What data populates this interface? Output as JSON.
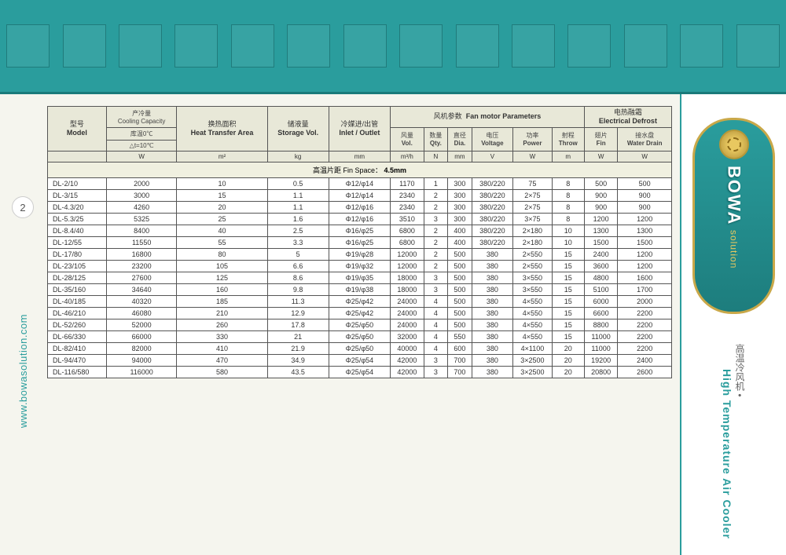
{
  "page_number": "2",
  "url": "www.bowasolution.com",
  "brand": "BOWA",
  "brand_sub": "solution",
  "product_title_en": "High Temperature Air Cooler",
  "product_title_cn": "高温冷风机",
  "headers": {
    "model_cn": "型号",
    "model_en": "Model",
    "cooling_cn": "产冷量",
    "cooling_en": "Cooling Capacity",
    "temp_cn": "库温0℃",
    "dt": "△t=10℃",
    "heat_cn": "换热面积",
    "heat_en": "Heat Transfer Area",
    "storage_cn": "储液量",
    "storage_en": "Storage Vol.",
    "inlet_cn": "冷媒进/出管",
    "inlet_en": "Inlet / Outlet",
    "fan_group_cn": "风机参数",
    "fan_group_en": "Fan motor Parameters",
    "vol_cn": "风量",
    "vol_en": "Vol.",
    "qty_cn": "数量",
    "qty_en": "Qty.",
    "dia_cn": "直径",
    "dia_en": "Dia.",
    "voltage_cn": "电压",
    "voltage_en": "Voltage",
    "power_cn": "功率",
    "power_en": "Power",
    "throw_cn": "射程",
    "throw_en": "Throw",
    "defrost_cn": "电热融霜",
    "defrost_en": "Electrical Defrost",
    "fin_cn": "翅片",
    "fin_en": "Fin",
    "drain_cn": "接水盘",
    "drain_en": "Water Drain"
  },
  "units": {
    "cooling": "W",
    "heat": "m²",
    "storage": "kg",
    "inlet": "mm",
    "vol": "m³/h",
    "qty": "N",
    "dia": "mm",
    "voltage": "V",
    "power": "W",
    "throw": "m",
    "fin": "W",
    "drain": "W"
  },
  "section_label_cn": "高温片距 Fin Space：",
  "section_value": "4.5mm",
  "rows": [
    {
      "m": "DL-2/10",
      "c": "2000",
      "h": "10",
      "s": "0.5",
      "io": "Φ12/φ14",
      "v": "1170",
      "q": "1",
      "d": "300",
      "vo": "380/220",
      "p": "75",
      "t": "8",
      "f": "500",
      "w": "500"
    },
    {
      "m": "DL-3/15",
      "c": "3000",
      "h": "15",
      "s": "1.1",
      "io": "Φ12/φ14",
      "v": "2340",
      "q": "2",
      "d": "300",
      "vo": "380/220",
      "p": "2×75",
      "t": "8",
      "f": "900",
      "w": "900"
    },
    {
      "m": "DL-4.3/20",
      "c": "4260",
      "h": "20",
      "s": "1.1",
      "io": "Φ12/φ16",
      "v": "2340",
      "q": "2",
      "d": "300",
      "vo": "380/220",
      "p": "2×75",
      "t": "8",
      "f": "900",
      "w": "900"
    },
    {
      "m": "DL-5.3/25",
      "c": "5325",
      "h": "25",
      "s": "1.6",
      "io": "Φ12/φ16",
      "v": "3510",
      "q": "3",
      "d": "300",
      "vo": "380/220",
      "p": "3×75",
      "t": "8",
      "f": "1200",
      "w": "1200"
    },
    {
      "m": "DL-8.4/40",
      "c": "8400",
      "h": "40",
      "s": "2.5",
      "io": "Φ16/φ25",
      "v": "6800",
      "q": "2",
      "d": "400",
      "vo": "380/220",
      "p": "2×180",
      "t": "10",
      "f": "1300",
      "w": "1300"
    },
    {
      "m": "DL-12/55",
      "c": "11550",
      "h": "55",
      "s": "3.3",
      "io": "Φ16/φ25",
      "v": "6800",
      "q": "2",
      "d": "400",
      "vo": "380/220",
      "p": "2×180",
      "t": "10",
      "f": "1500",
      "w": "1500"
    },
    {
      "m": "DL-17/80",
      "c": "16800",
      "h": "80",
      "s": "5",
      "io": "Φ19/φ28",
      "v": "12000",
      "q": "2",
      "d": "500",
      "vo": "380",
      "p": "2×550",
      "t": "15",
      "f": "2400",
      "w": "1200"
    },
    {
      "m": "DL-23/105",
      "c": "23200",
      "h": "105",
      "s": "6.6",
      "io": "Φ19/φ32",
      "v": "12000",
      "q": "2",
      "d": "500",
      "vo": "380",
      "p": "2×550",
      "t": "15",
      "f": "3600",
      "w": "1200"
    },
    {
      "m": "DL-28/125",
      "c": "27600",
      "h": "125",
      "s": "8.6",
      "io": "Φ19/φ35",
      "v": "18000",
      "q": "3",
      "d": "500",
      "vo": "380",
      "p": "3×550",
      "t": "15",
      "f": "4800",
      "w": "1600"
    },
    {
      "m": "DL-35/160",
      "c": "34640",
      "h": "160",
      "s": "9.8",
      "io": "Φ19/φ38",
      "v": "18000",
      "q": "3",
      "d": "500",
      "vo": "380",
      "p": "3×550",
      "t": "15",
      "f": "5100",
      "w": "1700"
    },
    {
      "m": "DL-40/185",
      "c": "40320",
      "h": "185",
      "s": "11.3",
      "io": "Φ25/φ42",
      "v": "24000",
      "q": "4",
      "d": "500",
      "vo": "380",
      "p": "4×550",
      "t": "15",
      "f": "6000",
      "w": "2000"
    },
    {
      "m": "DL-46/210",
      "c": "46080",
      "h": "210",
      "s": "12.9",
      "io": "Φ25/φ42",
      "v": "24000",
      "q": "4",
      "d": "500",
      "vo": "380",
      "p": "4×550",
      "t": "15",
      "f": "6600",
      "w": "2200"
    },
    {
      "m": "DL-52/260",
      "c": "52000",
      "h": "260",
      "s": "17.8",
      "io": "Φ25/φ50",
      "v": "24000",
      "q": "4",
      "d": "500",
      "vo": "380",
      "p": "4×550",
      "t": "15",
      "f": "8800",
      "w": "2200"
    },
    {
      "m": "DL-66/330",
      "c": "66000",
      "h": "330",
      "s": "21",
      "io": "Φ25/φ50",
      "v": "32000",
      "q": "4",
      "d": "550",
      "vo": "380",
      "p": "4×550",
      "t": "15",
      "f": "11000",
      "w": "2200"
    },
    {
      "m": "DL-82/410",
      "c": "82000",
      "h": "410",
      "s": "21.9",
      "io": "Φ25/φ50",
      "v": "40000",
      "q": "4",
      "d": "600",
      "vo": "380",
      "p": "4×1100",
      "t": "20",
      "f": "11000",
      "w": "2200"
    },
    {
      "m": "DL-94/470",
      "c": "94000",
      "h": "470",
      "s": "34.9",
      "io": "Φ25/φ54",
      "v": "42000",
      "q": "3",
      "d": "700",
      "vo": "380",
      "p": "3×2500",
      "t": "20",
      "f": "19200",
      "w": "2400"
    },
    {
      "m": "DL-116/580",
      "c": "116000",
      "h": "580",
      "s": "43.5",
      "io": "Φ25/φ54",
      "v": "42000",
      "q": "3",
      "d": "700",
      "vo": "380",
      "p": "3×2500",
      "t": "20",
      "f": "20800",
      "w": "2600"
    }
  ],
  "colors": {
    "teal": "#2a9d9d",
    "gold": "#c9a849",
    "bg": "#f5f5ee",
    "header_bg": "#e8e8d8",
    "border": "#555"
  }
}
